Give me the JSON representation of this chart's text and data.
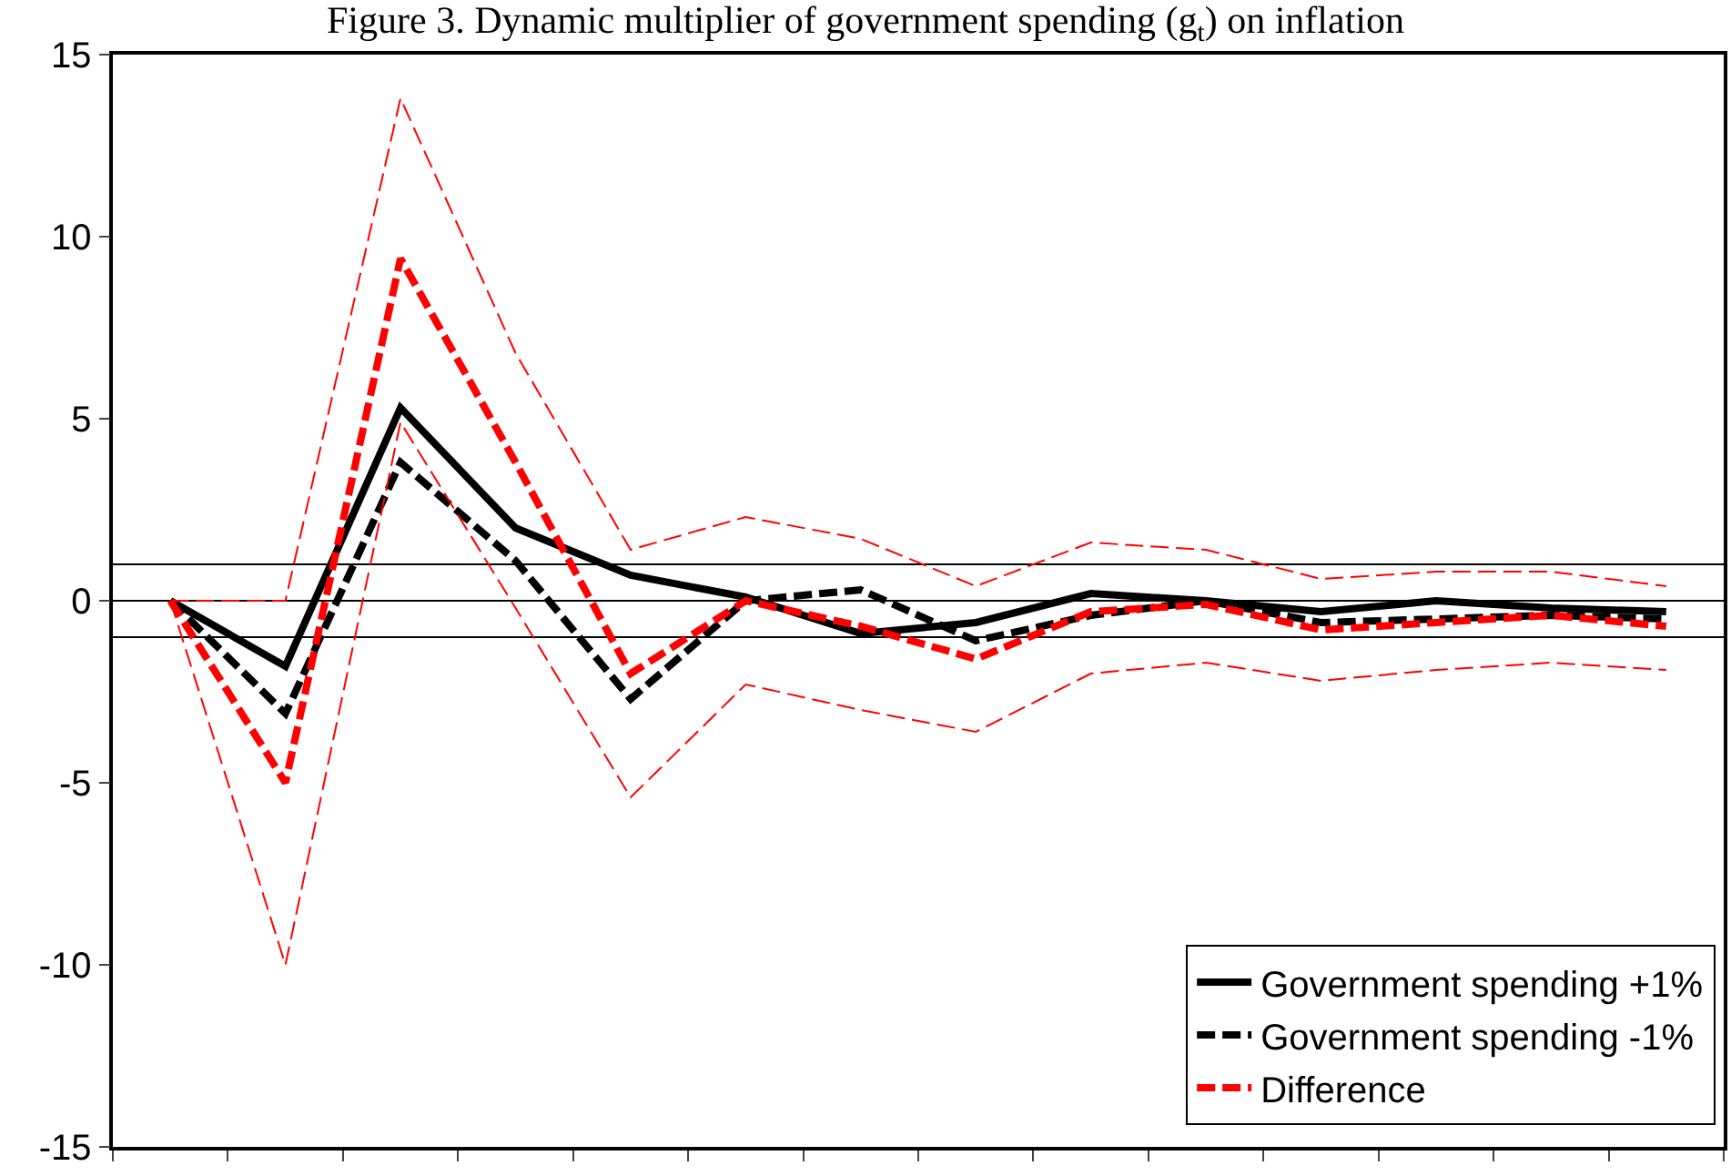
{
  "chart_data": {
    "type": "line",
    "title": "Figure 3. Dynamic multiplier of government spending (g$_{t}$) on inflation",
    "categories": [
      null,
      null,
      null,
      null,
      null,
      null,
      null,
      null,
      null,
      null,
      null,
      null,
      null,
      null
    ],
    "series": [
      {
        "name": "Government spending +1%",
        "color": "#000000",
        "line_style": "solid",
        "values": [
          0,
          -1.8,
          5.3,
          2.0,
          0.7,
          0.1,
          -0.9,
          -0.6,
          0.2,
          0,
          -0.3,
          0,
          -0.2,
          -0.3
        ]
      },
      {
        "name": "Government spending -1%",
        "color": "#000000",
        "line_style": "dashed",
        "values": [
          0,
          -3.1,
          3.8,
          1.1,
          -2.7,
          0,
          0.3,
          -1.1,
          -0.4,
          0,
          -0.6,
          -0.5,
          -0.4,
          -0.5
        ]
      },
      {
        "name": "Difference",
        "color": "#ff0000",
        "line_style": "dashed",
        "values": [
          0,
          -5.0,
          9.4,
          3.8,
          -2.0,
          0,
          -0.7,
          -1.6,
          -0.3,
          -0.1,
          -0.8,
          -0.6,
          -0.4,
          -0.7
        ]
      },
      {
        "color": "#ff0000",
        "line_style": "dashed",
        "values": [
          0,
          -10.0,
          4.9,
          -0.2,
          -5.4,
          -2.3,
          -3.0,
          -3.6,
          -2.0,
          -1.7,
          -2.2,
          -1.9,
          -1.7,
          -1.9
        ]
      },
      {
        "color": "#ff0000",
        "line_style": "dashed",
        "values": [
          0,
          0,
          13.8,
          6.8,
          1.4,
          2.3,
          1.7,
          0.4,
          1.6,
          1.4,
          0.6,
          0.8,
          0.8,
          0.4
        ]
      }
    ],
    "ref_lines": [
      {
        "axis": "y",
        "value": 1,
        "color": "#000000"
      },
      {
        "axis": "y",
        "value": 0,
        "color": "#000000"
      },
      {
        "axis": "y",
        "value": -1,
        "color": "#000000"
      }
    ],
    "ylim": [
      -15,
      15
    ],
    "yticks": [
      -15,
      -10,
      -5,
      0,
      5,
      10,
      15
    ],
    "tick_labels": "y",
    "grid": false,
    "legend": "bottom right",
    "marker": "none"
  }
}
